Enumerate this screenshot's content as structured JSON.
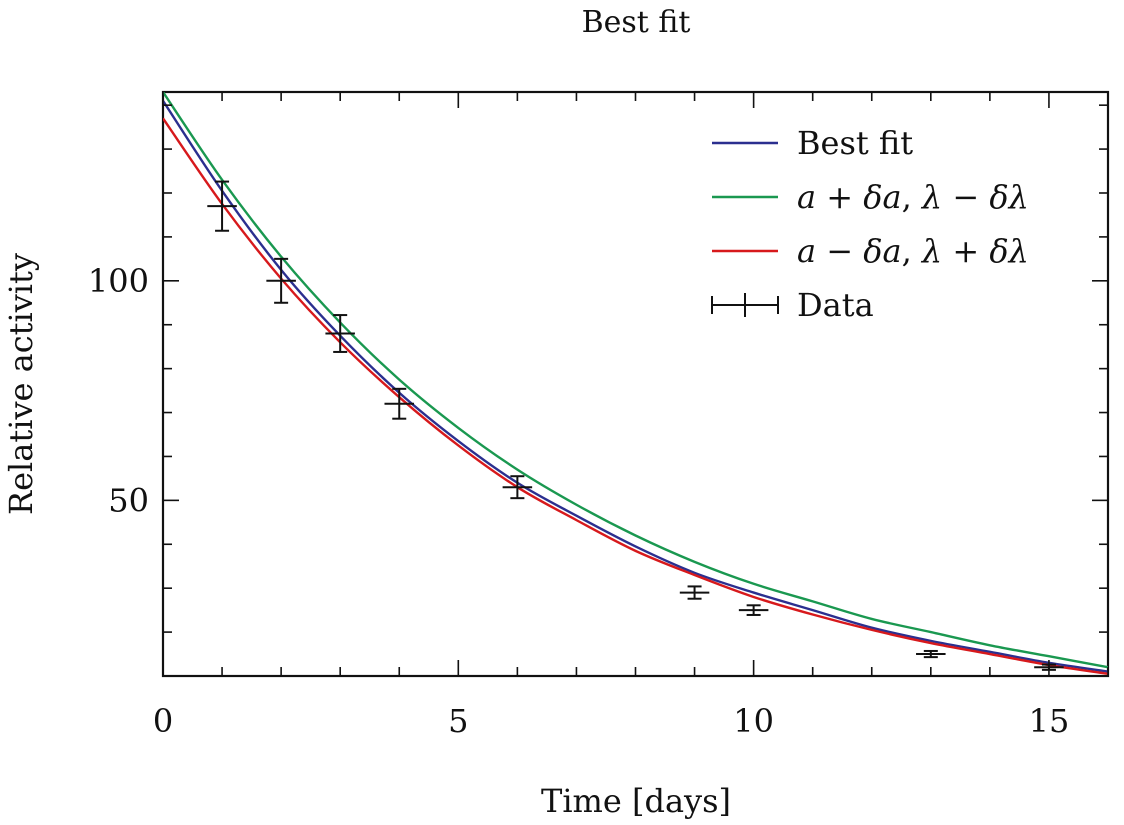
{
  "chart_data": {
    "type": "line",
    "title": "Best fit",
    "xlabel": "Time [days]",
    "ylabel": "Relative activity",
    "xlim": [
      0,
      16
    ],
    "ylim": [
      10,
      143
    ],
    "x_ticks": [
      0,
      5,
      10,
      15
    ],
    "x_tick_labels": [
      "0",
      "5",
      "10",
      "15"
    ],
    "y_ticks": [
      50,
      100
    ],
    "y_tick_labels": [
      "50",
      "100"
    ],
    "grid": false,
    "legend_position": "top-right",
    "series": [
      {
        "name": "Best fit",
        "color": "#2b2f8f",
        "kind": "curve",
        "x": [
          0,
          1,
          2,
          3,
          4,
          5,
          6,
          7,
          8,
          9,
          10,
          11,
          12,
          13,
          14,
          15,
          16
        ],
        "y": [
          141,
          120.5,
          102.5,
          87.5,
          74.5,
          63.5,
          54,
          46.5,
          39.5,
          33.5,
          29,
          25,
          21,
          18,
          15.5,
          13,
          11
        ]
      },
      {
        "name": "a + δa, λ − δλ",
        "color": "#1a9850",
        "kind": "curve",
        "x": [
          0,
          1,
          2,
          3,
          4,
          5,
          6,
          7,
          8,
          9,
          10,
          11,
          12,
          13,
          14,
          15,
          16
        ],
        "y": [
          143,
          123,
          105.5,
          90.5,
          77.5,
          66.5,
          57,
          49,
          42,
          36,
          31,
          27,
          23,
          20,
          17,
          14.5,
          12
        ]
      },
      {
        "name": "a − δa, λ + δλ",
        "color": "#d7191c",
        "kind": "curve",
        "x": [
          0,
          1,
          2,
          3,
          4,
          5,
          6,
          7,
          8,
          9,
          10,
          11,
          12,
          13,
          14,
          15,
          16
        ],
        "y": [
          137,
          117.5,
          100.5,
          86,
          73.5,
          62.5,
          53,
          45.5,
          38.5,
          33,
          28,
          24,
          20.5,
          17.5,
          15,
          12.5,
          10.5
        ]
      },
      {
        "name": "Data",
        "color": "#111111",
        "kind": "errorbar",
        "x": [
          1,
          2,
          3,
          4,
          6,
          9,
          10,
          13,
          15
        ],
        "y": [
          117,
          100,
          88,
          72,
          53,
          29,
          25,
          15,
          12
        ],
        "yerr": [
          5.6,
          5,
          4.2,
          3.4,
          2.5,
          1.4,
          1.1,
          0.7,
          0.6
        ],
        "xerr": [
          0.25,
          0.25,
          0.25,
          0.25,
          0.25,
          0.25,
          0.25,
          0.25,
          0.25
        ]
      }
    ],
    "legend": [
      {
        "label": "Best fit",
        "color": "#2b2f8f",
        "marker": "line"
      },
      {
        "label_parts": [
          "a",
          " + ",
          "δa",
          ", ",
          "λ",
          " − ",
          "δλ"
        ],
        "color": "#1a9850",
        "marker": "line"
      },
      {
        "label_parts": [
          "a",
          " − ",
          "δa",
          ", ",
          "λ",
          " + ",
          "δλ"
        ],
        "color": "#d7191c",
        "marker": "line"
      },
      {
        "label": "Data",
        "color": "#111111",
        "marker": "errorbar"
      }
    ]
  }
}
